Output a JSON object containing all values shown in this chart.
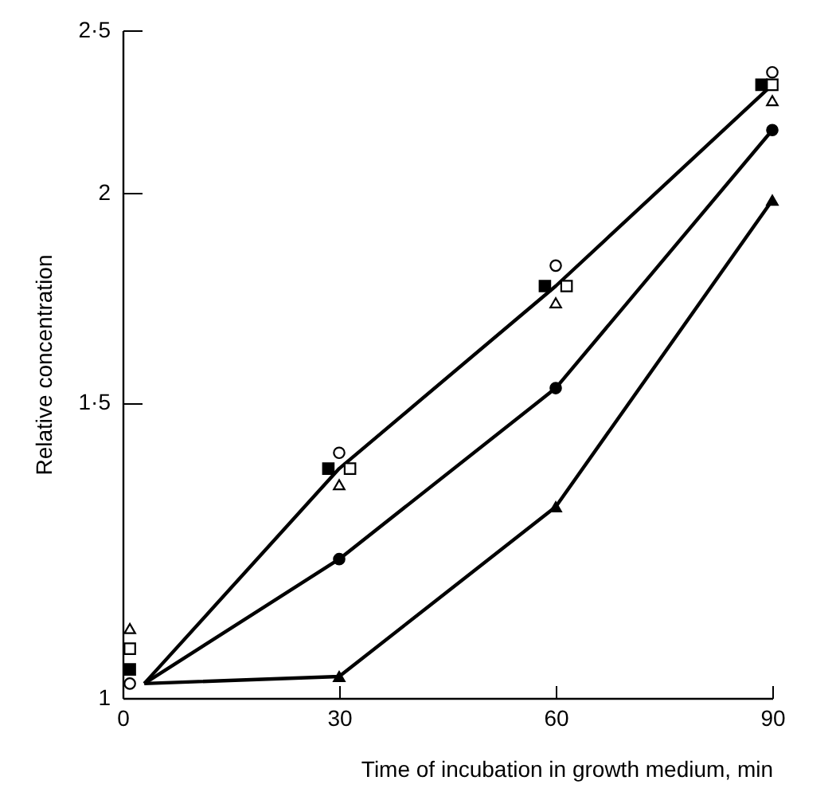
{
  "chart_data": {
    "type": "line",
    "xlabel": "Time of incubation in growth medium,   min",
    "ylabel": "Relative concentration",
    "log": "y",
    "grid": false,
    "xlim": [
      0,
      90
    ],
    "xticks": [
      0,
      30,
      60,
      90
    ],
    "ylim": [
      1,
      2.5
    ],
    "yticks": [
      1,
      {
        "value": 1.5,
        "label": "1·5"
      },
      2,
      {
        "value": 2.5,
        "label": "2·5"
      }
    ],
    "series": [
      {
        "type": "line",
        "color": "#000000",
        "marker": "none",
        "x": [
          3,
          30,
          60,
          90
        ],
        "values": [
          1.02,
          1.37,
          1.76,
          2.32
        ]
      },
      {
        "type": "line",
        "color": "#000000",
        "marker": "none",
        "x": [
          3,
          30,
          60,
          90
        ],
        "values": [
          1.02,
          1.21,
          1.53,
          2.18
        ]
      },
      {
        "type": "line",
        "color": "#000000",
        "marker": "none",
        "x": [
          3,
          30,
          60,
          90
        ],
        "values": [
          1.02,
          1.03,
          1.3,
          1.98
        ]
      },
      {
        "type": "scatter",
        "color": "#ffffff",
        "marker": "circle",
        "x": [
          1,
          30,
          60,
          90
        ],
        "values": [
          1.02,
          1.4,
          1.81,
          2.36
        ]
      },
      {
        "type": "scatter",
        "color": "#000000",
        "marker": "square",
        "x": [
          1,
          28.5,
          58.5,
          88.5
        ],
        "values": [
          1.04,
          1.37,
          1.76,
          2.32
        ]
      },
      {
        "type": "scatter",
        "color": "#ffffff",
        "marker": "square",
        "x": [
          1,
          31.5,
          61.5,
          90
        ],
        "values": [
          1.07,
          1.37,
          1.76,
          2.32
        ]
      },
      {
        "type": "scatter",
        "color": "#ffffff",
        "marker": "triangle",
        "x": [
          1,
          30,
          60,
          90
        ],
        "values": [
          1.1,
          1.34,
          1.72,
          2.27
        ]
      },
      {
        "type": "scatter",
        "color": "#000000",
        "marker": "circle",
        "x": [
          30,
          60,
          90
        ],
        "values": [
          1.21,
          1.53,
          2.18
        ]
      },
      {
        "type": "scatter",
        "color": "#000000",
        "marker": "triangle",
        "x": [
          30,
          60,
          90
        ],
        "values": [
          1.03,
          1.3,
          1.98
        ]
      }
    ]
  }
}
